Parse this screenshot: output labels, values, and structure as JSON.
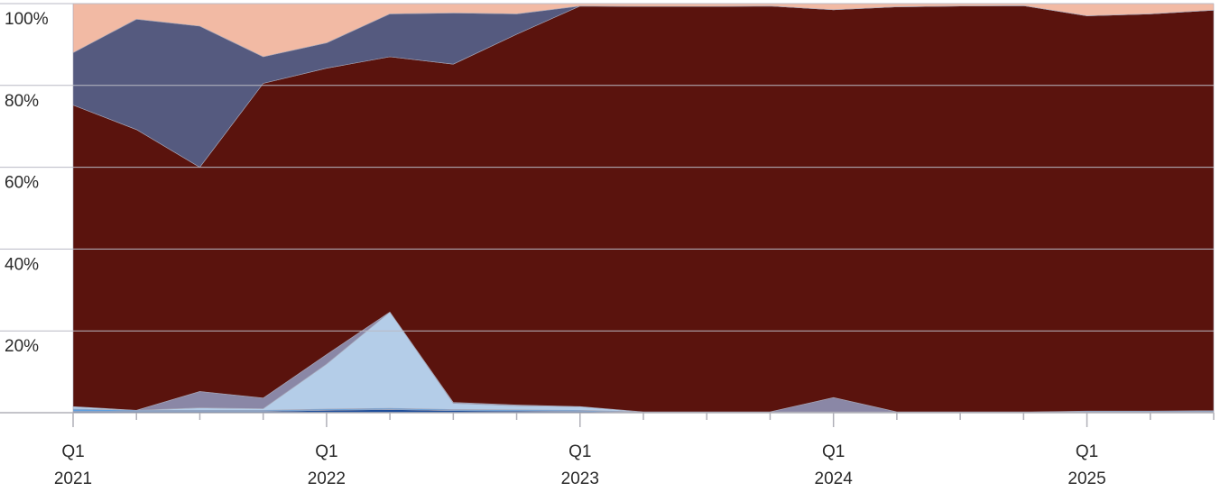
{
  "chart_data": {
    "type": "area",
    "stacked": "percent",
    "title": "",
    "xlabel": "",
    "ylabel": "",
    "ylim": [
      0,
      100
    ],
    "y_ticks": [
      "20%",
      "40%",
      "60%",
      "80%",
      "100%"
    ],
    "grid": true,
    "legend": "none",
    "x_labels": [
      {
        "quarter": "Q1",
        "year": "2021"
      },
      {
        "quarter": "Q1",
        "year": "2022"
      },
      {
        "quarter": "Q1",
        "year": "2023"
      },
      {
        "quarter": "Q1",
        "year": "2024"
      },
      {
        "quarter": "Q1",
        "year": "2025"
      }
    ],
    "x": [
      "2021-Q1",
      "2021-Q2",
      "2021-Q3",
      "2021-Q4",
      "2022-Q1",
      "2022-Q2",
      "2022-Q3",
      "2022-Q4",
      "2023-Q1",
      "2023-Q2",
      "2023-Q3",
      "2023-Q4",
      "2024-Q1",
      "2024-Q2",
      "2024-Q3",
      "2024-Q4",
      "2025-Q1",
      "2025-Q2",
      "2025-Q3"
    ],
    "series": [
      {
        "color": "#1f4e9a",
        "values": [
          0.3,
          0.3,
          0.3,
          0.3,
          0.6,
          0.8,
          0.5,
          0.4,
          0.3,
          0.1,
          0.1,
          0.1,
          0.1,
          0.1,
          0.1,
          0.1,
          0.2,
          0.2,
          0.2
        ]
      },
      {
        "color": "#5d9fe0",
        "values": [
          0.6,
          0.3,
          0.3,
          0.3,
          0.3,
          0.3,
          0.3,
          0.3,
          0.3,
          0.1,
          0.1,
          0.1,
          0.1,
          0.1,
          0.1,
          0.1,
          0.2,
          0.2,
          0.2
        ]
      },
      {
        "color": "#b4cde8",
        "values": [
          0.6,
          0.0,
          0.6,
          0.4,
          11.0,
          23.5,
          1.5,
          1.0,
          0.9,
          0.0,
          0.0,
          0.0,
          0.0,
          0.0,
          0.0,
          0.0,
          0.0,
          0.0,
          0.1
        ]
      },
      {
        "color": "#8a87a6",
        "values": [
          0.0,
          0.0,
          4.0,
          2.6,
          2.3,
          0.0,
          0.2,
          0.2,
          0.0,
          0.0,
          0.0,
          0.0,
          3.5,
          0.0,
          0.0,
          0.0,
          0.0,
          0.0,
          0.0
        ]
      },
      {
        "color": "#5a130d",
        "values": [
          73.7,
          68.6,
          54.8,
          76.9,
          70.0,
          62.4,
          82.7,
          90.6,
          97.9,
          99.1,
          99.1,
          99.2,
          94.8,
          99.0,
          99.2,
          99.3,
          96.6,
          97.1,
          97.9
        ]
      },
      {
        "color": "#555a7f",
        "values": [
          12.8,
          27.0,
          34.5,
          6.5,
          6.2,
          10.5,
          12.5,
          5.0,
          0.0,
          0.0,
          0.0,
          0.0,
          0.0,
          0.0,
          0.0,
          0.0,
          0.0,
          0.0,
          0.0
        ]
      },
      {
        "color": "#f2baa4",
        "values": [
          12.0,
          3.8,
          5.5,
          13.0,
          9.6,
          2.5,
          2.3,
          2.5,
          0.6,
          0.7,
          0.7,
          0.6,
          1.5,
          0.8,
          0.6,
          0.5,
          3.0,
          2.5,
          1.6
        ]
      }
    ]
  }
}
